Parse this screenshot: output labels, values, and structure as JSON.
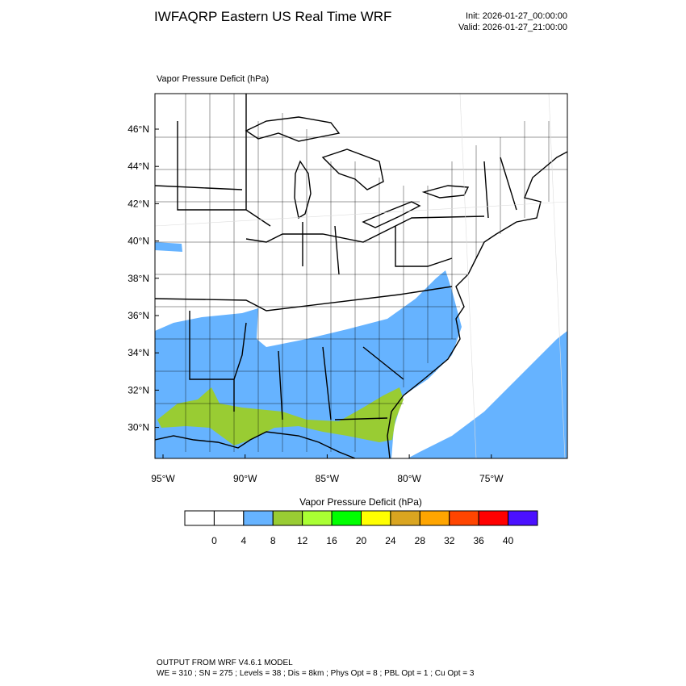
{
  "header": {
    "title": "IWFAQRP Eastern US Real Time WRF",
    "init": "Init: 2026-01-27_00:00:00",
    "valid": "Valid: 2026-01-27_21:00:00"
  },
  "map": {
    "field_label": "Vapor Pressure Deficit   (hPa)",
    "lat_labels": [
      "46°N",
      "44°N",
      "42°N",
      "40°N",
      "38°N",
      "36°N",
      "34°N",
      "32°N",
      "30°N"
    ],
    "lon_labels": [
      "95°W",
      "90°W",
      "85°W",
      "80°W",
      "75°W"
    ]
  },
  "colorbar": {
    "title": "Vapor Pressure Deficit  (hPa)",
    "colors": [
      "#ffffff",
      "#ffffff",
      "#66b3ff",
      "#99cc33",
      "#aaff33",
      "#00ff00",
      "#ffff00",
      "#daa520",
      "#ffa500",
      "#ff4500",
      "#ff0000",
      "#4b10ff"
    ],
    "ticks": [
      0,
      4,
      8,
      12,
      16,
      20,
      24,
      28,
      32,
      36,
      40
    ]
  },
  "footer": {
    "line1": "OUTPUT FROM WRF V4.6.1 MODEL",
    "line2": "WE = 310 ; SN = 275 ; Levels = 38 ; Dis = 8km ; Phys Opt = 8 ; PBL Opt = 1 ; Cu Opt = 3"
  }
}
